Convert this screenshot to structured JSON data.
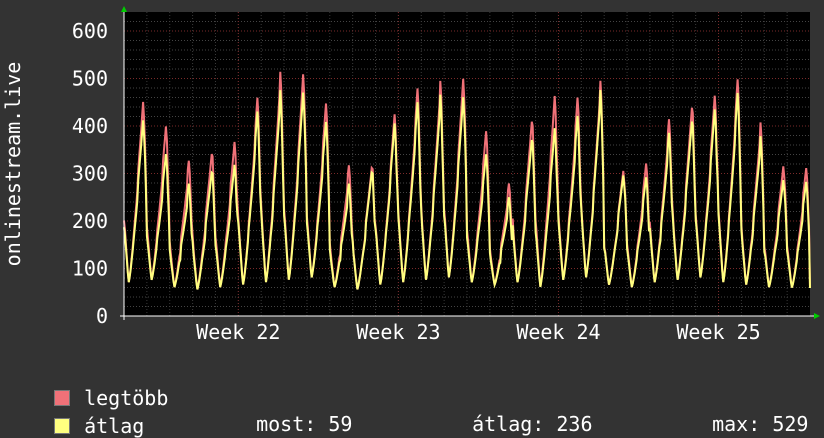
{
  "colors": {
    "max": "#F07178",
    "avg": "#FFFF80",
    "background": "#333333",
    "canvas": "#000000"
  },
  "legend": [
    {
      "label": "legtöbb",
      "color": "#F07178"
    },
    {
      "label": "átlag",
      "color": "#FFFF80"
    }
  ],
  "stats": {
    "now_label": "most:",
    "now_value": "59",
    "avg_label": "átlag:",
    "avg_value": "236",
    "max_label": "max:",
    "max_value": "529"
  },
  "chart_data": {
    "type": "line",
    "ylabel": "onlinestream.live",
    "ylim": [
      0,
      640
    ],
    "y_ticks": [
      0,
      100,
      200,
      300,
      400,
      500,
      600
    ],
    "x_tick_labels": [
      "Week 22",
      "Week 23",
      "Week 24",
      "Week 25"
    ],
    "grid": true,
    "x_unit": "days",
    "xlim": [
      0,
      30
    ],
    "x_tick_positions": [
      5,
      12,
      19,
      26
    ],
    "day_peaks_avg": [
      430,
      350,
      280,
      320,
      330,
      440,
      480,
      490,
      420,
      280,
      320,
      420,
      460,
      470,
      480,
      350,
      250,
      390,
      410,
      430,
      480,
      310,
      300,
      390,
      430,
      450,
      480,
      380,
      300,
      290
    ],
    "day_peaks_max": [
      470,
      410,
      330,
      360,
      380,
      470,
      520,
      530,
      460,
      320,
      330,
      440,
      490,
      500,
      520,
      400,
      280,
      430,
      480,
      470,
      500,
      320,
      330,
      420,
      460,
      480,
      510,
      410,
      330,
      320
    ],
    "day_troughs": [
      70,
      75,
      60,
      55,
      60,
      65,
      70,
      75,
      80,
      60,
      55,
      65,
      70,
      75,
      80,
      70,
      65,
      70,
      60,
      75,
      80,
      65,
      60,
      70,
      75,
      80,
      70,
      65,
      60,
      59
    ],
    "series": [
      {
        "name": "legtöbb",
        "key": "max"
      },
      {
        "name": "átlag",
        "key": "avg"
      }
    ]
  }
}
